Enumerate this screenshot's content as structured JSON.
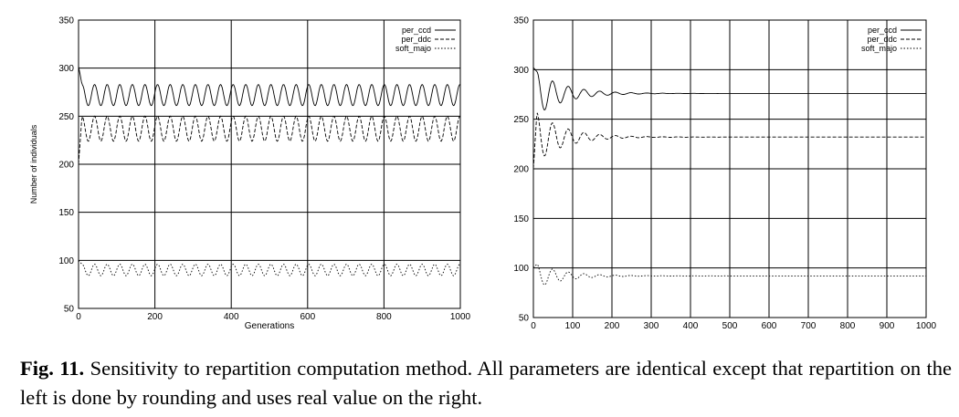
{
  "chart_data": [
    {
      "type": "line",
      "title": "",
      "xlabel": "Generations",
      "ylabel": "Number of individuals",
      "xlim": [
        0,
        1000
      ],
      "ylim": [
        50,
        350
      ],
      "xticks": [
        0,
        200,
        400,
        600,
        800,
        1000
      ],
      "yticks": [
        50,
        100,
        150,
        200,
        250,
        300,
        350
      ],
      "grid": true,
      "legend_position": "top-right",
      "series": [
        {
          "name": "per_ccd",
          "style": "solid",
          "start": 302,
          "center": 272,
          "amplitude": 11,
          "period": 33,
          "decay": 0,
          "note": "sustained oscillation"
        },
        {
          "name": "per_ddc",
          "style": "dashed",
          "start": 200,
          "center": 237,
          "amplitude": 13,
          "period": 33,
          "decay": 0,
          "note": "sustained oscillation"
        },
        {
          "name": "soft_majo",
          "style": "dotted",
          "start": 100,
          "center": 90,
          "amplitude": 6,
          "period": 33,
          "decay": 0,
          "note": "sustained oscillation"
        }
      ]
    },
    {
      "type": "line",
      "title": "",
      "xlabel": "",
      "ylabel": "",
      "xlim": [
        0,
        1000
      ],
      "ylim": [
        50,
        350
      ],
      "xticks": [
        0,
        100,
        200,
        300,
        400,
        500,
        600,
        700,
        800,
        900,
        1000
      ],
      "yticks": [
        50,
        100,
        150,
        200,
        250,
        300,
        350
      ],
      "grid": true,
      "legend_position": "top-right",
      "series": [
        {
          "name": "per_ccd",
          "style": "solid",
          "start": 302,
          "center": 276,
          "amplitude": 22,
          "period": 40,
          "decay": 0.014,
          "note": "damped, converges to ~276"
        },
        {
          "name": "per_ddc",
          "style": "dashed",
          "start": 200,
          "center": 232,
          "amplitude": 25,
          "period": 40,
          "decay": 0.014,
          "note": "damped, converges to ~232"
        },
        {
          "name": "soft_majo",
          "style": "dotted",
          "start": 100,
          "center": 92,
          "amplitude": 12,
          "period": 40,
          "decay": 0.014,
          "note": "damped, converges to ~92"
        }
      ]
    }
  ],
  "caption": {
    "label": "Fig. 11.",
    "text": "Sensitivity to repartition computation method. All parameters are identical except that repartition on the left is done by rounding and uses real value on the right."
  }
}
